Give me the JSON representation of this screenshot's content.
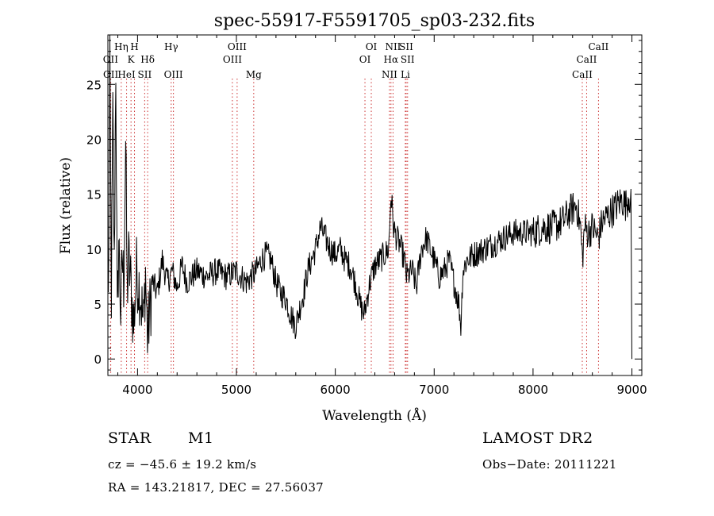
{
  "chart_data": {
    "type": "line",
    "title": "spec-55917-F5591705_sp03-232.fits",
    "xlabel": "Wavelength (Å)",
    "ylabel": "Flux (relative)",
    "xlim": [
      3700,
      9100
    ],
    "ylim": [
      -1.5,
      29.5
    ],
    "xticks": [
      4000,
      5000,
      6000,
      7000,
      8000,
      9000
    ],
    "yticks": [
      0,
      5,
      10,
      15,
      20,
      25
    ],
    "spectrum_anchors": [
      [
        3705,
        5
      ],
      [
        3720,
        26
      ],
      [
        3735,
        6
      ],
      [
        3750,
        22
      ],
      [
        3765,
        8
      ],
      [
        3780,
        27
      ],
      [
        3795,
        3
      ],
      [
        3810,
        11
      ],
      [
        3830,
        4
      ],
      [
        3845,
        9
      ],
      [
        3860,
        7
      ],
      [
        3880,
        19.8
      ],
      [
        3895,
        6
      ],
      [
        3910,
        9
      ],
      [
        3930,
        7
      ],
      [
        3960,
        3
      ],
      [
        3990,
        8
      ],
      [
        4030,
        6
      ],
      [
        4060,
        3
      ],
      [
        4080,
        8
      ],
      [
        4100,
        2
      ],
      [
        4150,
        7
      ],
      [
        4200,
        6
      ],
      [
        4250,
        9
      ],
      [
        4300,
        7
      ],
      [
        4350,
        8
      ],
      [
        4400,
        6.5
      ],
      [
        4450,
        8.5
      ],
      [
        4500,
        7
      ],
      [
        4600,
        8
      ],
      [
        4700,
        7.5
      ],
      [
        4800,
        8
      ],
      [
        4900,
        7.5
      ],
      [
        5000,
        8
      ],
      [
        5100,
        7
      ],
      [
        5200,
        8
      ],
      [
        5250,
        9
      ],
      [
        5300,
        9.5
      ],
      [
        5350,
        9
      ],
      [
        5400,
        7
      ],
      [
        5450,
        6
      ],
      [
        5500,
        5.5
      ],
      [
        5550,
        4
      ],
      [
        5600,
        3
      ],
      [
        5650,
        5
      ],
      [
        5680,
        6
      ],
      [
        5720,
        8
      ],
      [
        5760,
        9
      ],
      [
        5800,
        10
      ],
      [
        5850,
        12
      ],
      [
        5900,
        11
      ],
      [
        5950,
        10
      ],
      [
        6000,
        9.5
      ],
      [
        6050,
        10
      ],
      [
        6100,
        9
      ],
      [
        6150,
        8.5
      ],
      [
        6200,
        7
      ],
      [
        6250,
        5
      ],
      [
        6290,
        4
      ],
      [
        6310,
        5
      ],
      [
        6350,
        7
      ],
      [
        6400,
        8.5
      ],
      [
        6450,
        9
      ],
      [
        6500,
        9.5
      ],
      [
        6540,
        10
      ],
      [
        6563,
        15
      ],
      [
        6590,
        12
      ],
      [
        6620,
        11
      ],
      [
        6650,
        10.5
      ],
      [
        6700,
        9
      ],
      [
        6720,
        7.5
      ],
      [
        6780,
        8
      ],
      [
        6820,
        6.5
      ],
      [
        6870,
        10
      ],
      [
        6920,
        11
      ],
      [
        6960,
        10
      ],
      [
        7000,
        9
      ],
      [
        7050,
        7.5
      ],
      [
        7100,
        8
      ],
      [
        7150,
        9
      ],
      [
        7200,
        7
      ],
      [
        7250,
        5
      ],
      [
        7270,
        3
      ],
      [
        7290,
        8
      ],
      [
        7330,
        9
      ],
      [
        7400,
        9.5
      ],
      [
        7500,
        10
      ],
      [
        7600,
        10.5
      ],
      [
        7700,
        11
      ],
      [
        7800,
        11.5
      ],
      [
        7900,
        11.5
      ],
      [
        8000,
        11.5
      ],
      [
        8100,
        12
      ],
      [
        8200,
        12
      ],
      [
        8300,
        12.5
      ],
      [
        8380,
        13.5
      ],
      [
        8440,
        14
      ],
      [
        8480,
        12
      ],
      [
        8500,
        9
      ],
      [
        8520,
        12
      ],
      [
        8560,
        11.5
      ],
      [
        8600,
        12
      ],
      [
        8660,
        11
      ],
      [
        8700,
        12.5
      ],
      [
        8750,
        13
      ],
      [
        8800,
        13.5
      ],
      [
        8850,
        14
      ],
      [
        8900,
        14.5
      ],
      [
        8940,
        14
      ],
      [
        8970,
        15
      ],
      [
        8990,
        14
      ],
      [
        9000,
        0
      ]
    ],
    "lines": [
      {
        "name": "OII",
        "wl": 3727,
        "row": 2
      },
      {
        "name": "OII",
        "wl": 3729,
        "row": 3
      },
      {
        "name": "Hη",
        "wl": 3835,
        "row": 1
      },
      {
        "name": "H",
        "wl": 3969,
        "row": 1
      },
      {
        "name": "K",
        "wl": 3934,
        "row": 2
      },
      {
        "name": "HeI",
        "wl": 3889,
        "row": 3
      },
      {
        "name": "Hδ",
        "wl": 4102,
        "row": 2
      },
      {
        "name": "SII",
        "wl": 4072,
        "row": 3
      },
      {
        "name": "Hγ",
        "wl": 4340,
        "row": 1
      },
      {
        "name": "OIII",
        "wl": 4363,
        "row": 3
      },
      {
        "name": "OIII",
        "wl": 5007,
        "row": 1
      },
      {
        "name": "OIII",
        "wl": 4959,
        "row": 2
      },
      {
        "name": "Mg",
        "wl": 5175,
        "row": 3
      },
      {
        "name": "OI",
        "wl": 6364,
        "row": 1
      },
      {
        "name": "OI",
        "wl": 6300,
        "row": 2
      },
      {
        "name": "NII",
        "wl": 6584,
        "row": 1
      },
      {
        "name": "SII",
        "wl": 6717,
        "row": 1
      },
      {
        "name": "Hα",
        "wl": 6563,
        "row": 2
      },
      {
        "name": "SII",
        "wl": 6731,
        "row": 2
      },
      {
        "name": "NII",
        "wl": 6548,
        "row": 3
      },
      {
        "name": "Li",
        "wl": 6708,
        "row": 3
      },
      {
        "name": "CaII",
        "wl": 8662,
        "row": 1
      },
      {
        "name": "CaII",
        "wl": 8542,
        "row": 2
      },
      {
        "name": "CaII",
        "wl": 8498,
        "row": 3
      }
    ]
  },
  "info": {
    "class": "STAR",
    "subclass": "M1",
    "survey": "LAMOST DR2",
    "cz": "cz = −45.6 ± 19.2 km/s",
    "obs_date": "Obs−Date: 20111221",
    "radec": "RA = 143.21817, DEC =  27.56037"
  },
  "colors": {
    "line_marker": "#cc3333",
    "spectrum": "#000000",
    "axis": "#000000"
  }
}
